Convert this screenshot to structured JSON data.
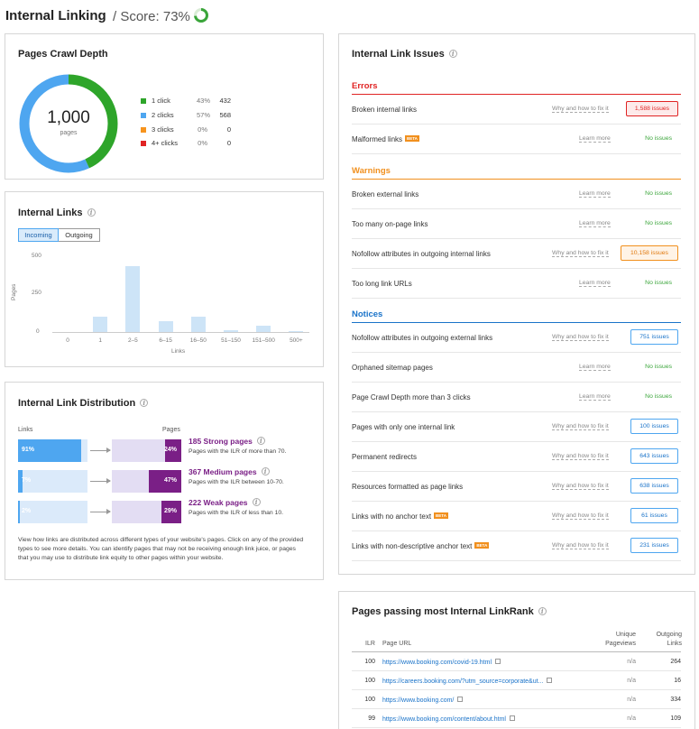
{
  "header": {
    "title": "Internal Linking",
    "score_label": "/ Score: 73%",
    "score_value": 73,
    "score_color": "#3aa53a"
  },
  "crawl_depth": {
    "title": "Pages Crawl Depth",
    "total": "1,000",
    "total_label": "pages",
    "legend": [
      {
        "name": "1 click",
        "pct": "43%",
        "count": "432",
        "color": "#2ea52a",
        "value": 43
      },
      {
        "name": "2 clicks",
        "pct": "57%",
        "count": "568",
        "color": "#4ea6f0",
        "value": 57
      },
      {
        "name": "3 clicks",
        "pct": "0%",
        "count": "0",
        "color": "#f7941d",
        "value": 0
      },
      {
        "name": "4+ clicks",
        "pct": "0%",
        "count": "0",
        "color": "#e02424",
        "value": 0
      }
    ]
  },
  "internal_links": {
    "title": "Internal Links",
    "tabs": [
      "Incoming",
      "Outgoing"
    ],
    "active_tab": "Incoming",
    "ylabel": "Pages",
    "xlabel": "Links",
    "yticks": [
      "500",
      "250",
      "0"
    ]
  },
  "chart_data": {
    "type": "bar",
    "categories": [
      "0",
      "1",
      "2–5",
      "6–15",
      "16–50",
      "51–150",
      "151–500",
      "500+"
    ],
    "values": [
      0,
      100,
      440,
      70,
      100,
      10,
      40,
      8
    ],
    "xlabel": "Links",
    "ylabel": "Pages",
    "ylim": [
      0,
      500
    ],
    "color": "#cde4f7"
  },
  "distribution": {
    "title": "Internal Link Distribution",
    "col_links": "Links",
    "col_pages": "Pages",
    "rows": [
      {
        "links_pct": "91%",
        "links_val": 91,
        "pages_pct": "24%",
        "pages_val": 24,
        "heading": "185 Strong pages",
        "sub": "Pages with the ILR of more than 70."
      },
      {
        "links_pct": "7%",
        "links_val": 7,
        "pages_pct": "47%",
        "pages_val": 47,
        "heading": "367 Medium pages",
        "sub": "Pages with the ILR between 10-70."
      },
      {
        "links_pct": "2%",
        "links_val": 2,
        "pages_pct": "29%",
        "pages_val": 29,
        "heading": "222 Weak pages",
        "sub": "Pages with the ILR of less than 10."
      }
    ],
    "paragraph": "View how links are distributed across different types of your website's pages. Click on any of the provided types to see more details. You can identify pages that may not be receiving enough link juice, or pages that you may use to distribute link equity to other pages within your website."
  },
  "issues": {
    "title": "Internal Link Issues",
    "sections": [
      {
        "name": "Errors",
        "color": "#e02424",
        "rows": [
          {
            "name": "Broken internal links",
            "beta": false,
            "link": "Why and how to fix it",
            "status": "1,588 issues",
            "kind": "error"
          },
          {
            "name": "Malformed links",
            "beta": true,
            "link": "Learn more",
            "status": "No issues",
            "kind": "none"
          }
        ]
      },
      {
        "name": "Warnings",
        "color": "#f1901e",
        "rows": [
          {
            "name": "Broken external links",
            "beta": false,
            "link": "Learn more",
            "status": "No issues",
            "kind": "none"
          },
          {
            "name": "Too many on-page links",
            "beta": false,
            "link": "Learn more",
            "status": "No issues",
            "kind": "none"
          },
          {
            "name": "Nofollow attributes in outgoing internal links",
            "beta": false,
            "link": "Why and how to fix it",
            "status": "10,158 issues",
            "kind": "warning"
          },
          {
            "name": "Too long link URLs",
            "beta": false,
            "link": "Learn more",
            "status": "No issues",
            "kind": "none"
          }
        ]
      },
      {
        "name": "Notices",
        "color": "#1a73c9",
        "rows": [
          {
            "name": "Nofollow attributes in outgoing external links",
            "beta": false,
            "link": "Why and how to fix it",
            "status": "751 issues",
            "kind": "notice"
          },
          {
            "name": "Orphaned sitemap pages",
            "beta": false,
            "link": "Learn more",
            "status": "No issues",
            "kind": "none"
          },
          {
            "name": "Page Crawl Depth more than 3 clicks",
            "beta": false,
            "link": "Learn more",
            "status": "No issues",
            "kind": "none"
          },
          {
            "name": "Pages with only one internal link",
            "beta": false,
            "link": "Why and how to fix it",
            "status": "100 issues",
            "kind": "notice"
          },
          {
            "name": "Permanent redirects",
            "beta": false,
            "link": "Why and how to fix it",
            "status": "643 issues",
            "kind": "notice"
          },
          {
            "name": "Resources formatted as page links",
            "beta": false,
            "link": "Why and how to fix it",
            "status": "638 issues",
            "kind": "notice"
          },
          {
            "name": "Links with no anchor text",
            "beta": true,
            "link": "Why and how to fix it",
            "status": "61 issues",
            "kind": "notice"
          },
          {
            "name": "Links with non-descriptive anchor text",
            "beta": true,
            "link": "Why and how to fix it",
            "status": "231 issues",
            "kind": "notice"
          }
        ]
      }
    ],
    "beta_label": "BETA"
  },
  "rank": {
    "title": "Pages passing most Internal LinkRank",
    "headers": {
      "ilr": "ILR",
      "url": "Page URL",
      "unique1": "Unique",
      "unique2": "Pageviews",
      "out1": "Outgoing",
      "out2": "Links"
    },
    "rows": [
      {
        "ilr": "100",
        "url": "https://www.booking.com/covid-19.html",
        "pv": "n/a",
        "out": "264"
      },
      {
        "ilr": "100",
        "url": "https://careers.booking.com/?utm_source=corporate&ut...",
        "pv": "n/a",
        "out": "16"
      },
      {
        "ilr": "100",
        "url": "https://www.booking.com/",
        "pv": "n/a",
        "out": "334"
      },
      {
        "ilr": "99",
        "url": "https://www.booking.com/content/about.html",
        "pv": "n/a",
        "out": "109"
      }
    ]
  }
}
